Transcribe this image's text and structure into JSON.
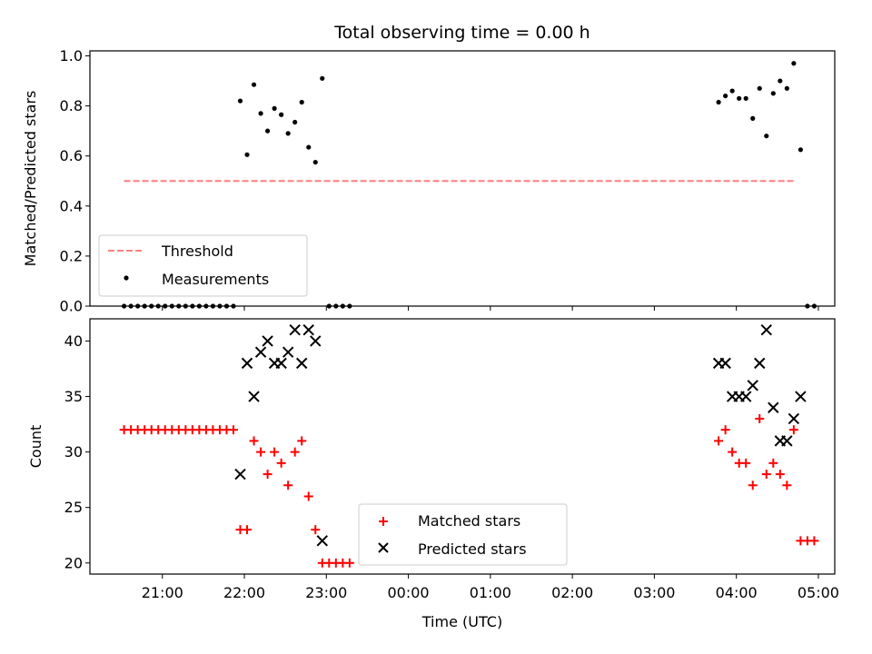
{
  "chart_data": {
    "title": "Total observing time = 0.00 h",
    "xlabel": "Time (UTC)",
    "x_ticks": [
      "21:00",
      "22:00",
      "23:00",
      "00:00",
      "01:00",
      "02:00",
      "03:00",
      "04:00",
      "05:00"
    ],
    "x_ticks_hours": [
      21,
      22,
      23,
      24,
      25,
      26,
      27,
      28,
      29
    ],
    "xlim": [
      "20:07",
      "05:12"
    ],
    "panels": [
      {
        "type": "scatter",
        "ylabel": "Matched/Predicted stars",
        "ylim": [
          0,
          1.02
        ],
        "yticks": [
          "0.0",
          "0.2",
          "0.4",
          "0.6",
          "0.8",
          "1.0"
        ],
        "yticks_values": [
          0,
          0.2,
          0.4,
          0.6,
          0.8,
          1.0
        ],
        "legend_position": "lower-left",
        "series": [
          {
            "name": "Threshold",
            "kind": "line",
            "style": "dashed",
            "color": "#ff7f7f",
            "x": [
              "20:32",
              "04:42"
            ],
            "y": [
              0.5,
              0.5
            ]
          },
          {
            "name": "Measurements",
            "kind": "scatter",
            "marker": "dot",
            "color": "#000000",
            "x": [
              "20:32",
              "20:37",
              "20:42",
              "20:47",
              "20:52",
              "20:57",
              "21:02",
              "21:07",
              "21:12",
              "21:17",
              "21:22",
              "21:27",
              "21:32",
              "21:37",
              "21:42",
              "21:47",
              "21:52",
              "21:57",
              "22:02",
              "22:07",
              "22:12",
              "22:17",
              "22:22",
              "22:27",
              "22:32",
              "22:37",
              "22:42",
              "22:47",
              "22:52",
              "22:57",
              "23:02",
              "23:07",
              "23:12",
              "23:17",
              "03:47",
              "03:52",
              "03:57",
              "04:02",
              "04:07",
              "04:12",
              "04:17",
              "04:22",
              "04:27",
              "04:32",
              "04:37",
              "04:42",
              "04:47",
              "04:52",
              "04:57"
            ],
            "y": [
              0,
              0,
              0,
              0,
              0,
              0,
              0,
              0,
              0,
              0,
              0,
              0,
              0,
              0,
              0,
              0,
              0,
              0.82,
              0.605,
              0.885,
              0.77,
              0.7,
              0.79,
              0.765,
              0.69,
              0.735,
              0.815,
              0.635,
              0.575,
              0.91,
              0,
              0,
              0,
              0,
              0.815,
              0.84,
              0.86,
              0.83,
              0.83,
              0.75,
              0.87,
              0.68,
              0.85,
              0.9,
              0.87,
              0.97,
              0.625,
              0,
              0
            ]
          }
        ]
      },
      {
        "type": "scatter",
        "ylabel": "Count",
        "ylim": [
          19,
          42
        ],
        "yticks": [
          "20",
          "25",
          "30",
          "35",
          "40"
        ],
        "yticks_values": [
          20,
          25,
          30,
          35,
          40
        ],
        "legend_position": "lower-center",
        "series": [
          {
            "name": "Matched stars",
            "kind": "scatter",
            "marker": "plus",
            "color": "#ff0000",
            "x": [
              "20:32",
              "20:37",
              "20:42",
              "20:47",
              "20:52",
              "20:57",
              "21:02",
              "21:07",
              "21:12",
              "21:17",
              "21:22",
              "21:27",
              "21:32",
              "21:37",
              "21:42",
              "21:47",
              "21:52",
              "21:57",
              "22:02",
              "22:07",
              "22:12",
              "22:17",
              "22:22",
              "22:27",
              "22:32",
              "22:37",
              "22:42",
              "22:47",
              "22:52",
              "22:57",
              "23:02",
              "23:07",
              "23:12",
              "23:17",
              "03:47",
              "03:52",
              "03:57",
              "04:02",
              "04:07",
              "04:12",
              "04:17",
              "04:22",
              "04:27",
              "04:32",
              "04:37",
              "04:42",
              "04:47",
              "04:52",
              "04:57"
            ],
            "y": [
              32,
              32,
              32,
              32,
              32,
              32,
              32,
              32,
              32,
              32,
              32,
              32,
              32,
              32,
              32,
              32,
              32,
              23,
              23,
              31,
              30,
              28,
              30,
              29,
              27,
              30,
              31,
              26,
              23,
              20,
              20,
              20,
              20,
              20,
              31,
              32,
              30,
              29,
              29,
              27,
              33,
              28,
              29,
              28,
              27,
              32,
              22,
              22,
              22
            ]
          },
          {
            "name": "Predicted stars",
            "kind": "scatter",
            "marker": "x",
            "color": "#000000",
            "x": [
              "21:57",
              "22:02",
              "22:07",
              "22:12",
              "22:17",
              "22:22",
              "22:27",
              "22:32",
              "22:37",
              "22:42",
              "22:47",
              "22:52",
              "22:57",
              "03:47",
              "03:52",
              "03:57",
              "04:02",
              "04:07",
              "04:12",
              "04:17",
              "04:22",
              "04:27",
              "04:32",
              "04:37",
              "04:42",
              "04:47"
            ],
            "y": [
              28,
              38,
              35,
              39,
              40,
              38,
              38,
              39,
              41,
              38,
              41,
              40,
              22,
              38,
              38,
              35,
              35,
              35,
              36,
              38,
              41,
              34,
              31,
              31,
              33,
              35
            ]
          }
        ]
      }
    ]
  }
}
